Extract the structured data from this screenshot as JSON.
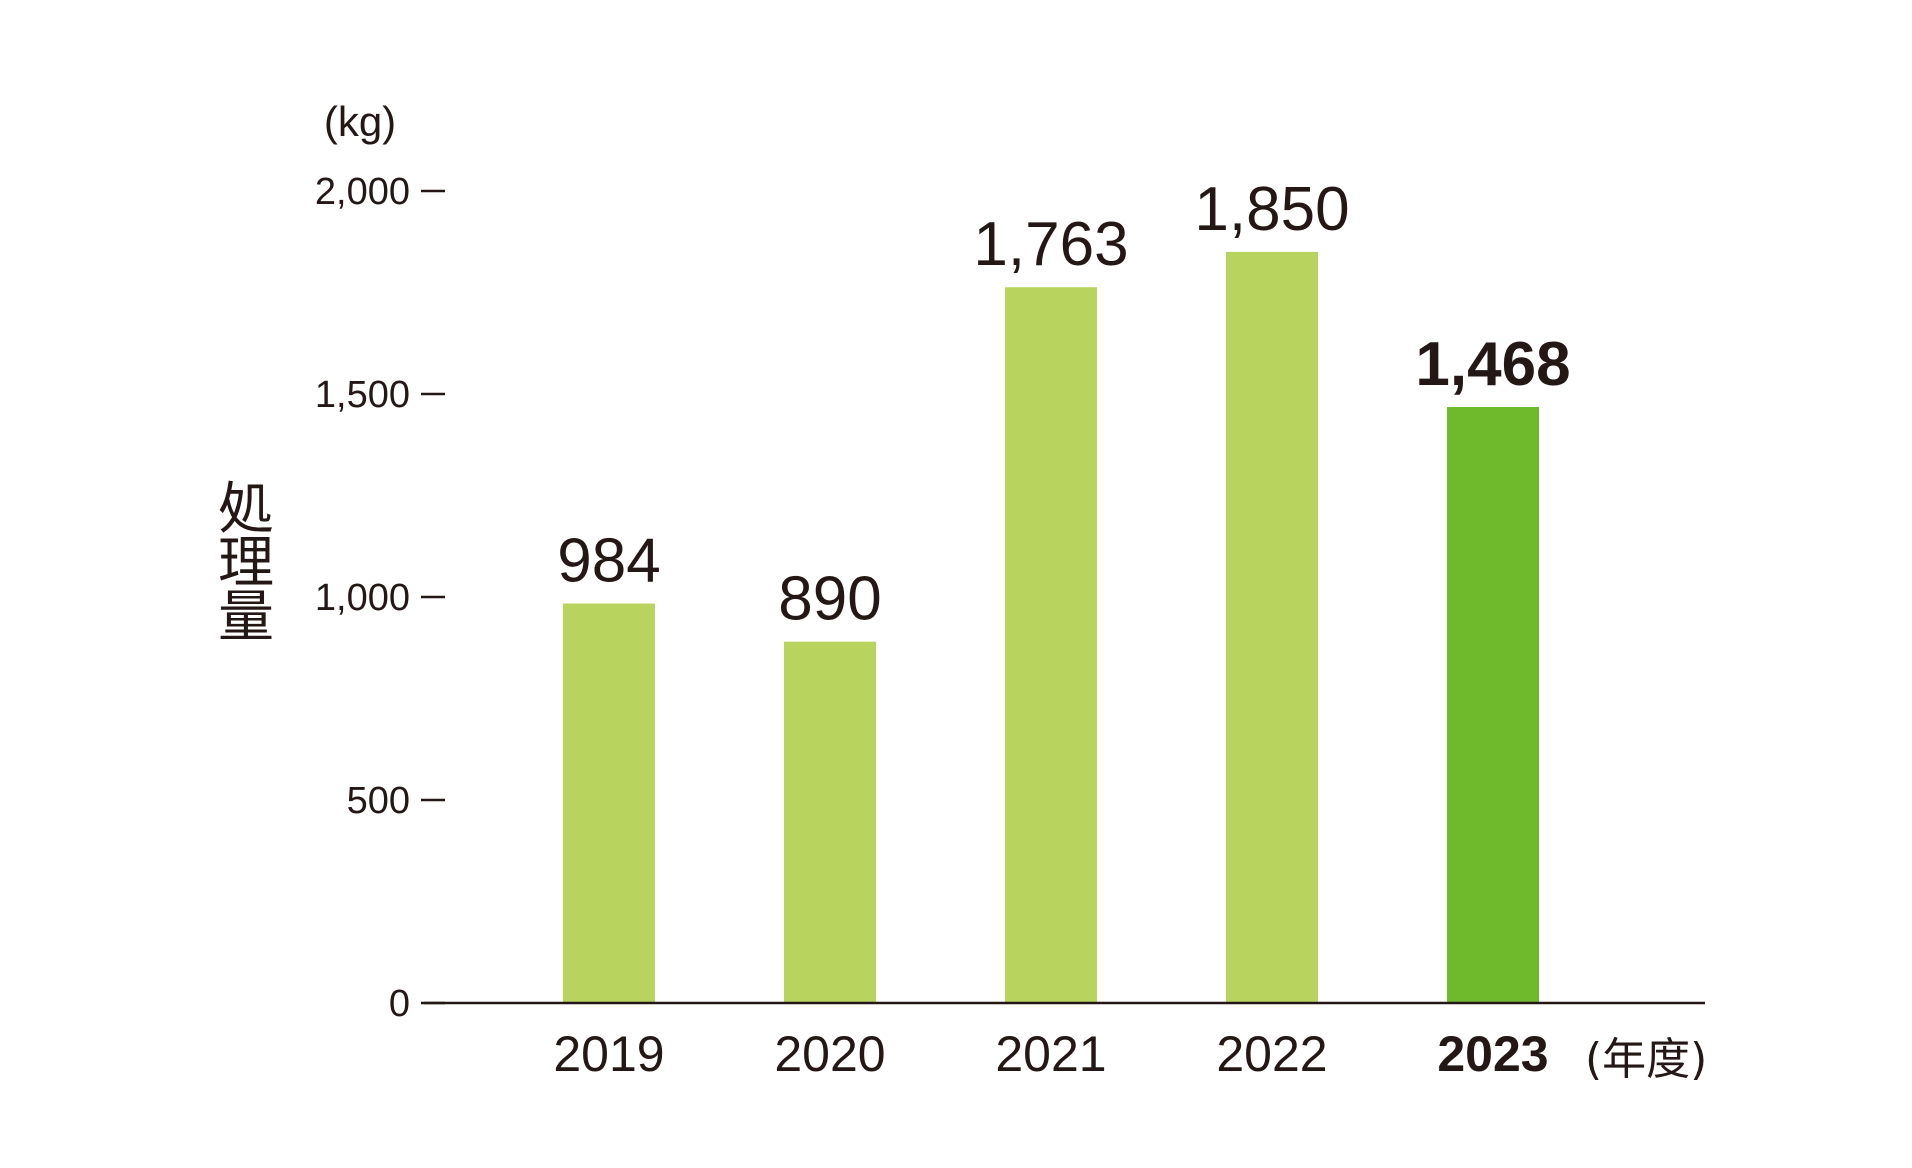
{
  "chart_data": {
    "type": "bar",
    "categories": [
      "2019",
      "2020",
      "2021",
      "2022",
      "2023"
    ],
    "values": [
      984,
      890,
      1763,
      1850,
      1468
    ],
    "value_labels": [
      "984",
      "890",
      "1,763",
      "1,850",
      "1,468"
    ],
    "highlight_index": 4,
    "title": "",
    "ylabel": "処理量",
    "yunit": "(kg)",
    "xunit": "(年度)",
    "ylim": [
      0,
      2000
    ],
    "yticks": [
      0,
      500,
      1000,
      1500,
      2000
    ],
    "ytick_labels": [
      "0",
      "500",
      "1,000",
      "1,500",
      "2,000"
    ],
    "grid": false,
    "legend": "none",
    "colors": {
      "bar": "#b8d45e",
      "highlight": "#6fba2c",
      "text": "#231815",
      "axis": "#231815"
    }
  }
}
